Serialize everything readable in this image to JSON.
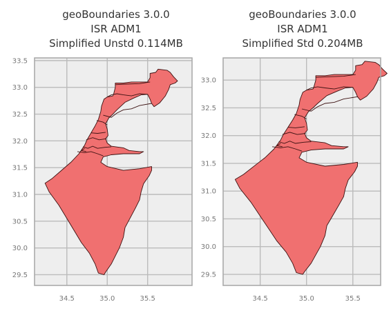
{
  "chart_data": [
    {
      "type": "map",
      "title": [
        "geoBoundaries 3.0.0",
        "ISR ADM1",
        "Simplified Unstd 0.114MB"
      ],
      "xticks": [
        34.5,
        35.0,
        35.5
      ],
      "xtick_labels": [
        "34.5",
        "35.0",
        "35.5"
      ],
      "yticks": [
        29.5,
        30.0,
        30.5,
        31.0,
        31.5,
        32.0,
        32.5,
        33.0,
        33.5
      ],
      "ytick_labels": [
        "29.5",
        "30.0",
        "30.5",
        "31.0",
        "31.5",
        "32.0",
        "32.5",
        "33.0",
        "33.5"
      ],
      "xlim": [
        34.1,
        36.05
      ],
      "ylim": [
        29.3,
        33.55
      ],
      "grid": true,
      "fill_color": "#f07070",
      "edge_color": "#3a1010",
      "background": "#eeeeee"
    },
    {
      "type": "map",
      "title": [
        "geoBoundaries 3.0.0",
        "ISR ADM1",
        "Simplified Std 0.204MB"
      ],
      "xticks": [
        34.5,
        35.0,
        35.5
      ],
      "xtick_labels": [
        "34.5",
        "35.0",
        "35.5"
      ],
      "yticks": [
        29.5,
        30.0,
        30.5,
        31.0,
        31.5,
        32.0,
        32.5,
        33.0
      ],
      "ytick_labels": [
        "29.5",
        "30.0",
        "30.5",
        "31.0",
        "31.5",
        "32.0",
        "32.5",
        "33.0"
      ],
      "xlim": [
        34.1,
        35.8
      ],
      "ylim": [
        29.3,
        33.4
      ],
      "grid": true,
      "fill_color": "#f07070",
      "edge_color": "#3a1010",
      "background": "#eeeeee"
    }
  ]
}
